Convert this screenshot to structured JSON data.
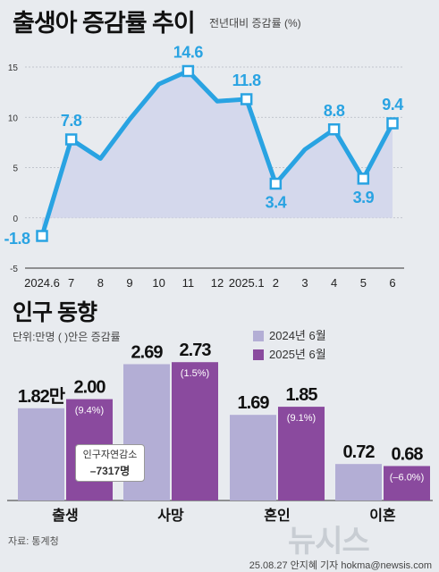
{
  "line_section": {
    "title": "출생아 증감률 추이",
    "subtitle": "전년대비 증감률 (%)"
  },
  "bar_section": {
    "title": "인구 동향",
    "unit_note": "단위:만명 ( )안은  증감률",
    "note_title": "인구자연감소",
    "note_value": "–7317명"
  },
  "footer": {
    "source": "자료: 통계청",
    "watermark": "뉴시스",
    "credit": "25.08.27  안지혜  기자  hokma@newsis.com"
  },
  "colors": {
    "line": "#29a3e2",
    "area": "#d4d8ec",
    "bar_2024": "#b3aed5",
    "bar_2025": "#8a4a9e",
    "background": "#e8ebef"
  },
  "chart_data": [
    {
      "type": "line",
      "x": [
        "2024.6",
        "7",
        "8",
        "9",
        "10",
        "11",
        "12",
        "2025.1",
        "2",
        "3",
        "4",
        "5",
        "6"
      ],
      "values": [
        -1.8,
        7.8,
        5.9,
        9.8,
        13.3,
        14.6,
        11.6,
        11.8,
        3.4,
        6.8,
        8.8,
        3.9,
        9.4
      ],
      "data_labels": [
        "-1.8",
        "7.8",
        null,
        null,
        null,
        "14.6",
        null,
        "11.8",
        "3.4",
        null,
        "8.8",
        "3.9",
        "9.4"
      ],
      "yticks": [
        "15",
        "10",
        "5",
        "0",
        "-5"
      ],
      "ylim": [
        -5,
        15
      ],
      "grid": true
    },
    {
      "type": "bar",
      "categories": [
        "출생",
        "사망",
        "혼인",
        "이혼"
      ],
      "series": [
        {
          "name": "2024년 6월",
          "values": [
            1.82,
            2.69,
            1.69,
            0.72
          ],
          "labels": [
            "1.82만",
            "2.69",
            "1.69",
            "0.72"
          ]
        },
        {
          "name": "2025년 6월",
          "values": [
            2.0,
            2.73,
            1.85,
            0.68
          ],
          "labels": [
            "2.00",
            "2.73",
            "1.85",
            "0.68"
          ],
          "changes": [
            "(9.4%)",
            "(1.5%)",
            "(9.1%)",
            "(–6.0%)"
          ]
        }
      ],
      "legend_position": "top-right"
    }
  ]
}
